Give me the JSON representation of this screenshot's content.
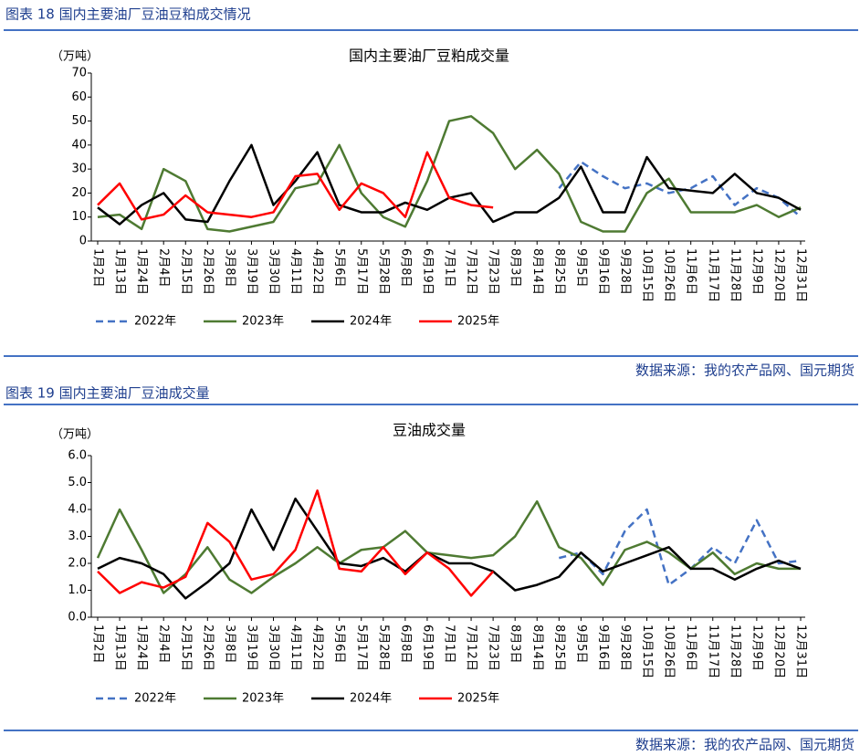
{
  "figures": [
    {
      "caption": "图表 18  国内主要油厂豆油豆粕成交情况",
      "source": "数据来源：我的农产品网、国元期货"
    },
    {
      "caption": "图表 19  国内主要油厂豆油成交量",
      "source": "数据来源：我的农产品网、国元期货"
    }
  ],
  "chart_data": [
    {
      "type": "line",
      "title": "国内主要油厂豆粕成交量",
      "y_label": "（万吨）",
      "categories": [
        "1月2日",
        "1月13日",
        "1月24日",
        "2月4日",
        "2月15日",
        "2月26日",
        "3月8日",
        "3月19日",
        "3月30日",
        "4月11日",
        "4月22日",
        "5月6日",
        "5月17日",
        "5月28日",
        "6月8日",
        "6月19日",
        "7月1日",
        "7月12日",
        "7月23日",
        "8月3日",
        "8月14日",
        "8月25日",
        "9月5日",
        "9月16日",
        "9月28日",
        "10月15日",
        "10月26日",
        "11月6日",
        "11月17日",
        "11月28日",
        "12月9日",
        "12月20日",
        "12月31日"
      ],
      "ylim": [
        0,
        70
      ],
      "yticks": [
        0,
        10,
        20,
        30,
        40,
        50,
        60,
        70
      ],
      "series": [
        {
          "name": "2022年",
          "color": "#4472c4",
          "dashed": true,
          "values": [
            null,
            null,
            null,
            null,
            null,
            null,
            null,
            null,
            null,
            null,
            null,
            null,
            null,
            null,
            null,
            null,
            null,
            null,
            null,
            null,
            null,
            22,
            33,
            27,
            22,
            24,
            20,
            22,
            27,
            15,
            22,
            18,
            10
          ]
        },
        {
          "name": "2023年",
          "color": "#4e7a32",
          "values": [
            10,
            11,
            5,
            30,
            25,
            5,
            4,
            6,
            8,
            22,
            24,
            40,
            20,
            10,
            6,
            25,
            50,
            52,
            45,
            30,
            38,
            28,
            8,
            4,
            4,
            20,
            26,
            12,
            12,
            12,
            15,
            10,
            14
          ]
        },
        {
          "name": "2024年",
          "color": "#000000",
          "values": [
            14,
            7,
            15,
            20,
            9,
            8,
            25,
            40,
            15,
            25,
            37,
            15,
            12,
            12,
            16,
            13,
            18,
            20,
            8,
            12,
            12,
            18,
            31,
            12,
            12,
            35,
            22,
            21,
            20,
            28,
            20,
            18,
            13
          ]
        },
        {
          "name": "2025年",
          "color": "#ff0000",
          "values": [
            15,
            24,
            9,
            11,
            19,
            12,
            11,
            10,
            12,
            27,
            28,
            13,
            24,
            20,
            10,
            37,
            18,
            15,
            14,
            null,
            null,
            null,
            null,
            null,
            null,
            null,
            null,
            null,
            null,
            null,
            null,
            null,
            null
          ]
        }
      ]
    },
    {
      "type": "line",
      "title": "豆油成交量",
      "y_label": "（万吨）",
      "categories": [
        "1月2日",
        "1月13日",
        "1月24日",
        "2月4日",
        "2月15日",
        "2月26日",
        "3月8日",
        "3月19日",
        "3月30日",
        "4月11日",
        "4月22日",
        "5月6日",
        "5月17日",
        "5月28日",
        "6月8日",
        "6月19日",
        "7月1日",
        "7月12日",
        "7月23日",
        "8月3日",
        "8月14日",
        "8月25日",
        "9月5日",
        "9月16日",
        "9月28日",
        "10月15日",
        "10月26日",
        "11月6日",
        "11月17日",
        "11月28日",
        "12月9日",
        "12月20日",
        "12月31日"
      ],
      "ylim": [
        0,
        6
      ],
      "yticks": [
        {
          "value": 0,
          "label": "0.0"
        },
        {
          "value": 1,
          "label": "1.0"
        },
        {
          "value": 2,
          "label": "2.0"
        },
        {
          "value": 3,
          "label": "3.0"
        },
        {
          "value": 4,
          "label": "4.0"
        },
        {
          "value": 5,
          "label": "5.0"
        },
        {
          "value": 6,
          "label": "6.0"
        }
      ],
      "series": [
        {
          "name": "2022年",
          "color": "#4472c4",
          "dashed": true,
          "values": [
            null,
            null,
            null,
            null,
            null,
            null,
            null,
            null,
            null,
            null,
            null,
            null,
            null,
            null,
            null,
            null,
            null,
            null,
            null,
            null,
            null,
            2.2,
            2.4,
            1.6,
            3.2,
            4.0,
            1.2,
            1.8,
            2.6,
            2.0,
            3.6,
            2.0,
            2.1
          ]
        },
        {
          "name": "2023年",
          "color": "#4e7a32",
          "values": [
            2.2,
            4.0,
            2.5,
            0.9,
            1.6,
            2.6,
            1.4,
            0.9,
            1.5,
            2.0,
            2.6,
            2.0,
            2.5,
            2.6,
            3.2,
            2.4,
            2.3,
            2.2,
            2.3,
            3.0,
            4.3,
            2.6,
            2.2,
            1.2,
            2.5,
            2.8,
            2.4,
            1.8,
            2.4,
            1.6,
            2.0,
            1.8,
            1.8
          ]
        },
        {
          "name": "2024年",
          "color": "#000000",
          "values": [
            1.8,
            2.2,
            2.0,
            1.6,
            0.7,
            1.3,
            2.0,
            4.0,
            2.5,
            4.4,
            3.2,
            2.0,
            1.9,
            2.2,
            1.7,
            2.4,
            2.0,
            2.0,
            1.7,
            1.0,
            1.2,
            1.5,
            2.4,
            1.7,
            2.0,
            2.3,
            2.6,
            1.8,
            1.8,
            1.4,
            1.8,
            2.1,
            1.8
          ]
        },
        {
          "name": "2025年",
          "color": "#ff0000",
          "values": [
            1.7,
            0.9,
            1.3,
            1.1,
            1.5,
            3.5,
            2.8,
            1.4,
            1.6,
            2.5,
            4.7,
            1.8,
            1.7,
            2.6,
            1.6,
            2.4,
            1.8,
            0.8,
            1.7,
            null,
            null,
            null,
            null,
            null,
            null,
            null,
            null,
            null,
            null,
            null,
            null,
            null,
            null
          ]
        }
      ]
    }
  ]
}
